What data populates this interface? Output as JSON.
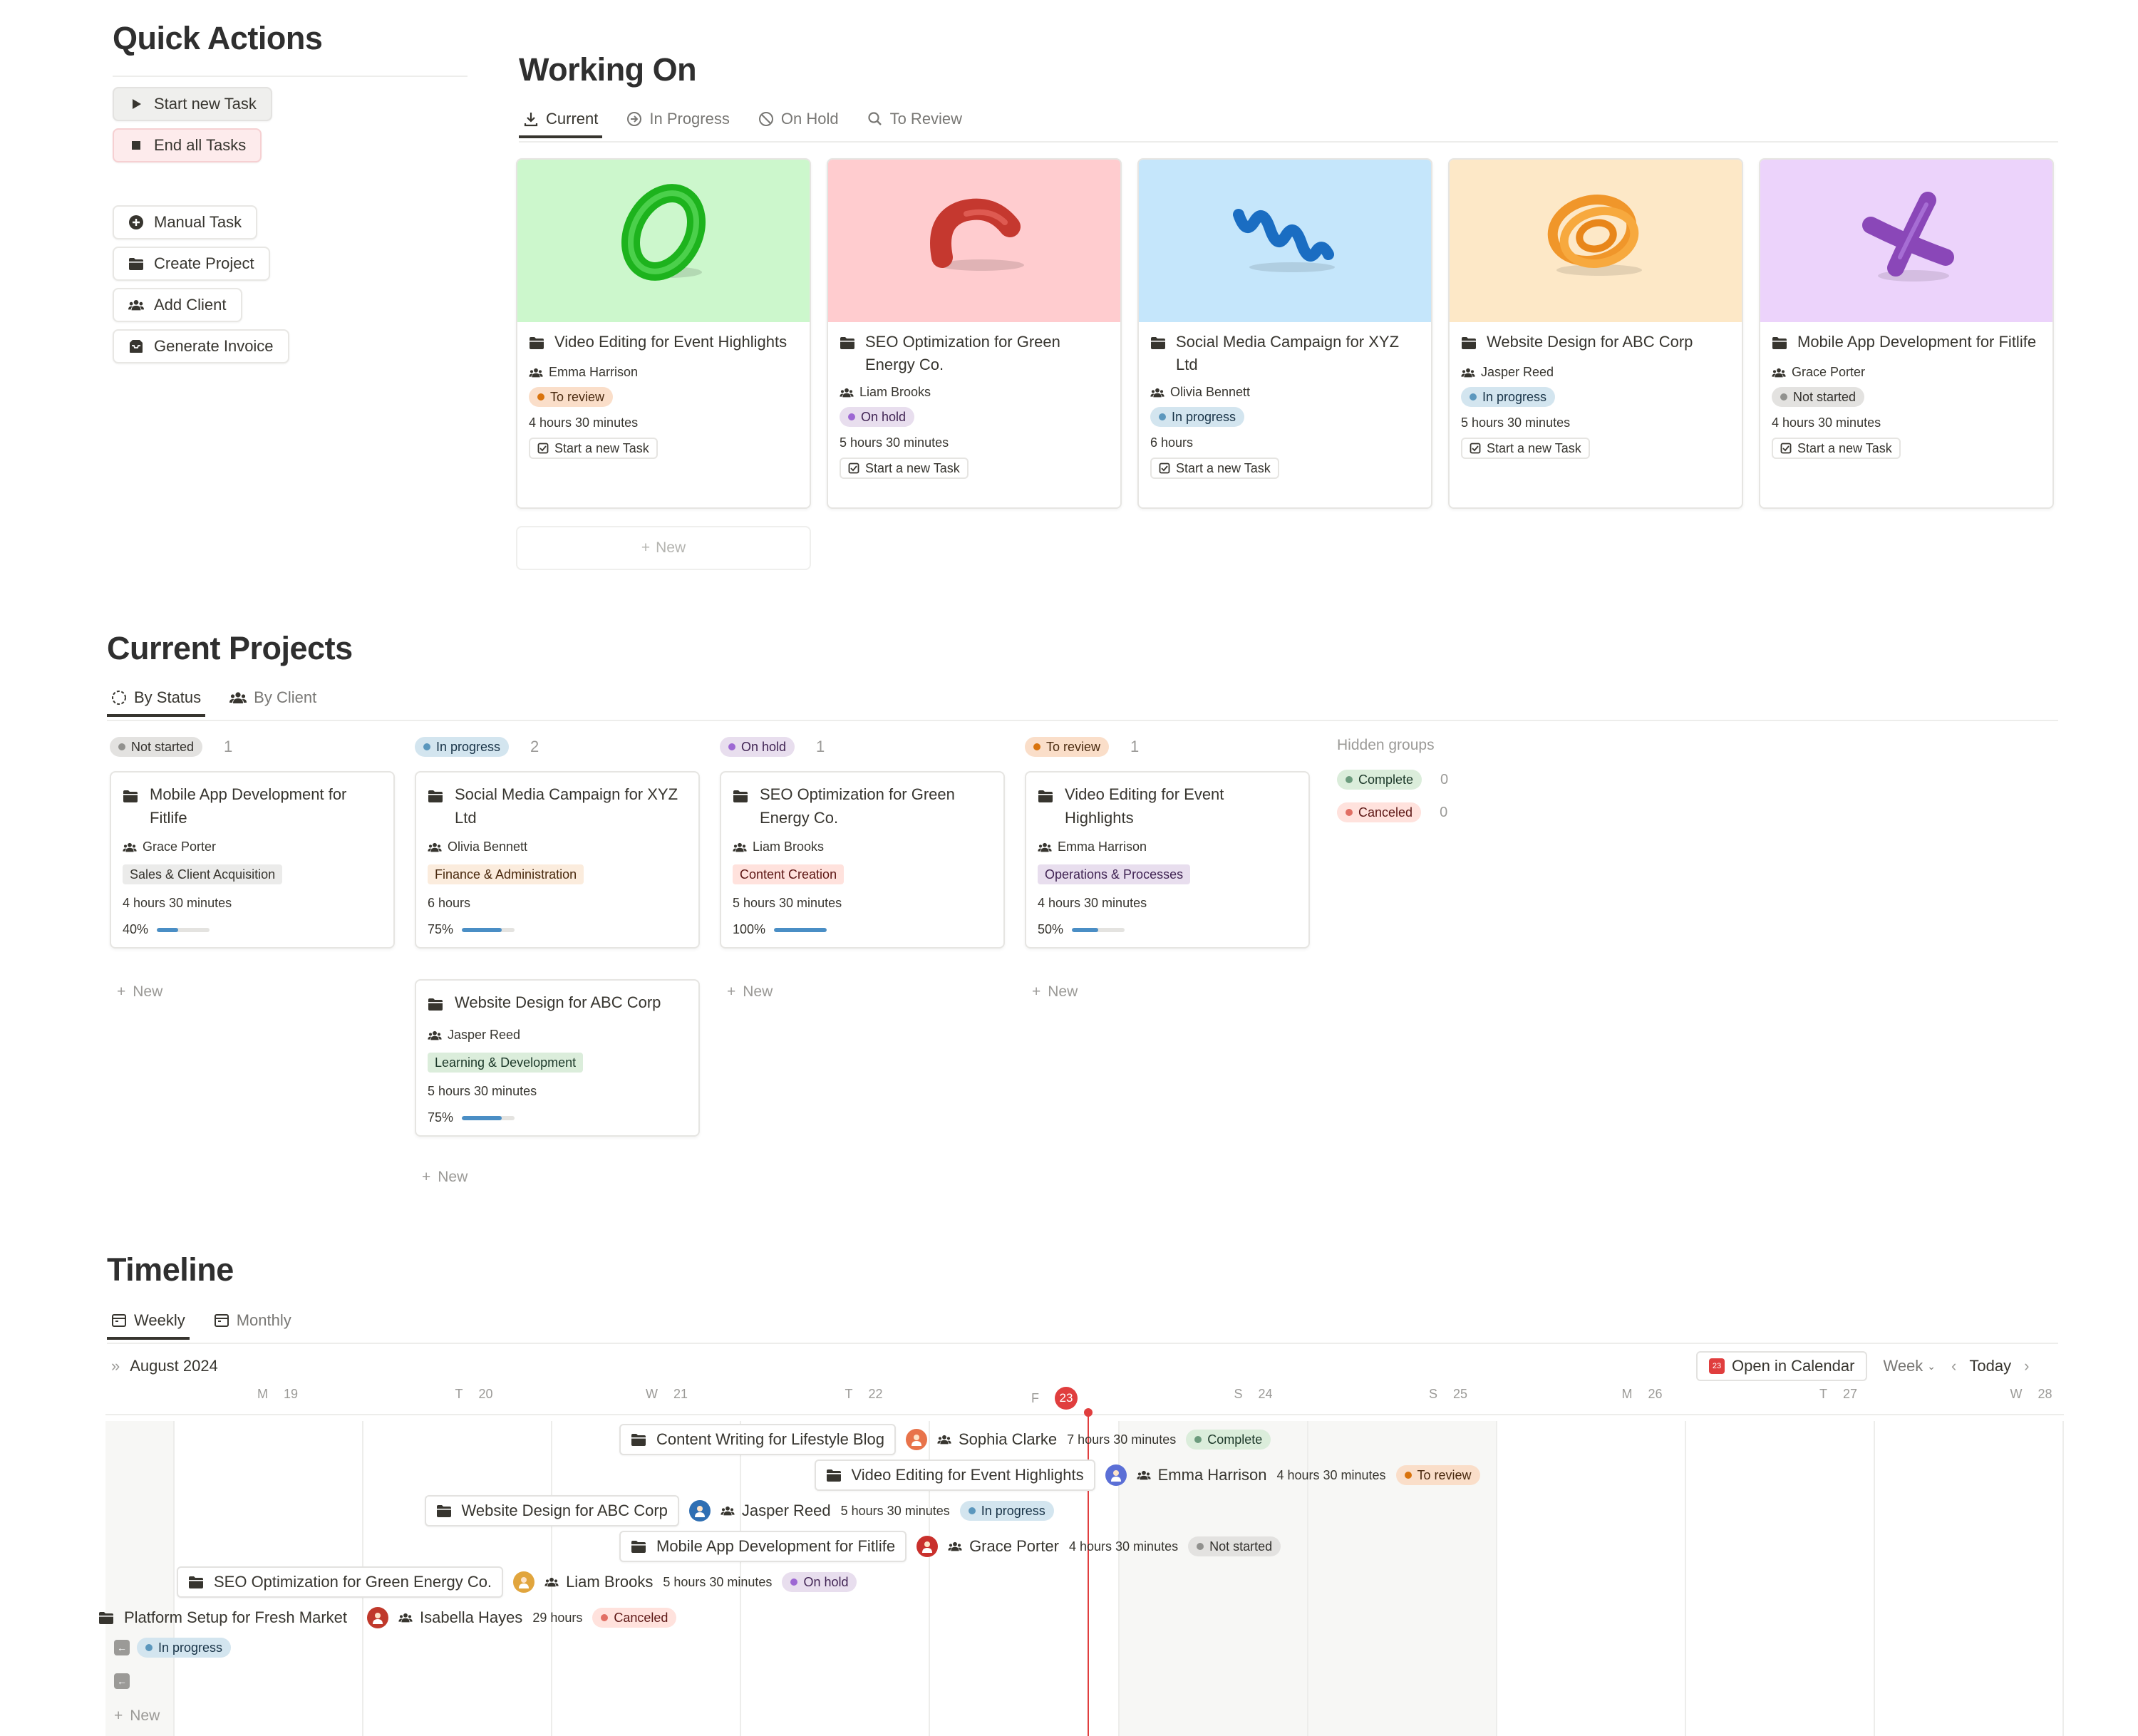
{
  "quick_actions": {
    "title": "Quick Actions",
    "primary": [
      {
        "label": "Start new Task",
        "icon": "play-icon"
      },
      {
        "label": "End all Tasks",
        "icon": "stop-icon"
      }
    ],
    "secondary": [
      {
        "label": "Manual Task",
        "icon": "plus-circle-icon"
      },
      {
        "label": "Create Project",
        "icon": "folder-icon"
      },
      {
        "label": "Add Client",
        "icon": "people-icon"
      },
      {
        "label": "Generate Invoice",
        "icon": "inbox-icon"
      }
    ]
  },
  "working_on": {
    "title": "Working On",
    "tabs": [
      {
        "label": "Current",
        "icon": "download-icon",
        "active": true
      },
      {
        "label": "In Progress",
        "icon": "arrow-circle-icon",
        "active": false
      },
      {
        "label": "On Hold",
        "icon": "block-icon",
        "active": false
      },
      {
        "label": "To Review",
        "icon": "search-icon",
        "active": false
      }
    ],
    "cards": [
      {
        "title": "Video Editing for Event Highlights",
        "client": "Emma Harrison",
        "status": "To review",
        "hours": "4 hours 30 minutes",
        "action": "Start a new Task",
        "cover": "#ccf7cc",
        "shape": "ring"
      },
      {
        "title": "SEO Optimization for Green Energy Co.",
        "client": "Liam Brooks",
        "status": "On hold",
        "hours": "5 hours 30 minutes",
        "action": "Start a new Task",
        "cover": "#ffcccf",
        "shape": "arc"
      },
      {
        "title": "Social Media Campaign for XYZ Ltd",
        "client": "Olivia Bennett",
        "status": "In progress",
        "hours": "6 hours",
        "action": "Start a new Task",
        "cover": "#c5e6fb",
        "shape": "wave"
      },
      {
        "title": "Website Design for ABC Corp",
        "client": "Jasper Reed",
        "status": "In progress",
        "hours": "5 hours 30 minutes",
        "action": "Start a new Task",
        "cover": "#fde8c7",
        "shape": "coil"
      },
      {
        "title": "Mobile App Development for Fitlife",
        "client": "Grace Porter",
        "status": "Not started",
        "hours": "4 hours 30 minutes",
        "action": "Start a new Task",
        "cover": "#ecd3fb",
        "shape": "cross"
      }
    ],
    "new_label": "New"
  },
  "current_projects": {
    "title": "Current Projects",
    "tabs": [
      {
        "label": "By Status",
        "icon": "status-icon",
        "active": true
      },
      {
        "label": "By Client",
        "icon": "people-icon",
        "active": false
      }
    ],
    "columns": [
      {
        "status": "Not started",
        "count": "1",
        "cards": [
          {
            "title": "Mobile App Development for Fitlife",
            "client": "Grace Porter",
            "tag": "Sales & Client Acquisition",
            "tag_bg": "#ebebea",
            "tag_fg": "#37352f",
            "hours": "4 hours 30 minutes",
            "progress_label": "40%",
            "progress": 0.4
          }
        ]
      },
      {
        "status": "In progress",
        "count": "2",
        "cards": [
          {
            "title": "Social Media Campaign for XYZ Ltd",
            "client": "Olivia Bennett",
            "tag": "Finance & Administration",
            "tag_bg": "#fbecdd",
            "tag_fg": "#49290e",
            "hours": "6 hours",
            "progress_label": "75%",
            "progress": 0.75
          },
          {
            "title": "Website Design for ABC Corp",
            "client": "Jasper Reed",
            "tag": "Learning & Development",
            "tag_bg": "#dbeddb",
            "tag_fg": "#1c3829",
            "hours": "5 hours 30 minutes",
            "progress_label": "75%",
            "progress": 0.75
          }
        ]
      },
      {
        "status": "On hold",
        "count": "1",
        "cards": [
          {
            "title": "SEO Optimization for Green Energy Co.",
            "client": "Liam Brooks",
            "tag": "Content Creation",
            "tag_bg": "#ffe2dd",
            "tag_fg": "#5d1715",
            "hours": "5 hours 30 minutes",
            "progress_label": "100%",
            "progress": 1.0
          }
        ]
      },
      {
        "status": "To review",
        "count": "1",
        "cards": [
          {
            "title": "Video Editing for Event Highlights",
            "client": "Emma Harrison",
            "tag": "Operations & Processes",
            "tag_bg": "#e8deee",
            "tag_fg": "#412454",
            "hours": "4 hours 30 minutes",
            "progress_label": "50%",
            "progress": 0.5
          }
        ]
      }
    ],
    "hidden_groups": {
      "label": "Hidden groups",
      "items": [
        {
          "status": "Complete",
          "count": "0"
        },
        {
          "status": "Canceled",
          "count": "0"
        }
      ]
    },
    "new_label": "New"
  },
  "statuses": {
    "Not started": {
      "bg": "#e3e2e0",
      "fg": "#32302c",
      "dot": "#91918e"
    },
    "In progress": {
      "bg": "#d3e5ef",
      "fg": "#183347",
      "dot": "#5b97bd"
    },
    "On hold": {
      "bg": "#e8deee",
      "fg": "#412454",
      "dot": "#9d68d3"
    },
    "To review": {
      "bg": "#fadec9",
      "fg": "#49290e",
      "dot": "#d9730d"
    },
    "Complete": {
      "bg": "#dbeddb",
      "fg": "#1c3829",
      "dot": "#6c9b7d"
    },
    "Canceled": {
      "bg": "#ffe2dd",
      "fg": "#5d1715",
      "dot": "#e16f64"
    }
  },
  "timeline": {
    "title": "Timeline",
    "tabs": [
      {
        "label": "Weekly",
        "icon": "calendar-icon",
        "active": true
      },
      {
        "label": "Monthly",
        "icon": "calendar-icon",
        "active": false
      }
    ],
    "month": "August 2024",
    "open_calendar": "Open in Calendar",
    "calendar_badge": "23",
    "range": "Week",
    "today": "Today",
    "days": [
      {
        "letter": "M",
        "num": "19"
      },
      {
        "letter": "T",
        "num": "20"
      },
      {
        "letter": "W",
        "num": "21"
      },
      {
        "letter": "T",
        "num": "22"
      },
      {
        "letter": "F",
        "num": "23",
        "today": true
      },
      {
        "letter": "S",
        "num": "24"
      },
      {
        "letter": "S",
        "num": "25"
      },
      {
        "letter": "M",
        "num": "26"
      },
      {
        "letter": "T",
        "num": "27"
      },
      {
        "letter": "W",
        "num": "28"
      }
    ],
    "items": [
      {
        "title": "Content Writing for Lifestyle Blog",
        "client": "Sophia Clarke",
        "hours": "7 hours 30 minutes",
        "status": "Complete",
        "avatar_color": "#e8734a"
      },
      {
        "title": "Video Editing for Event Highlights",
        "client": "Emma Harrison",
        "hours": "4 hours 30 minutes",
        "status": "To review",
        "avatar_color": "#5b6fd6"
      },
      {
        "title": "Website Design for ABC Corp",
        "client": "Jasper Reed",
        "hours": "5 hours 30 minutes",
        "status": "In progress",
        "avatar_color": "#2f6fb3"
      },
      {
        "title": "Mobile App Development for Fitlife",
        "client": "Grace Porter",
        "hours": "4 hours 30 minutes",
        "status": "Not started",
        "avatar_color": "#c9302c"
      },
      {
        "title": "SEO Optimization for Green Energy Co.",
        "client": "Liam Brooks",
        "hours": "5 hours 30 minutes",
        "status": "On hold",
        "avatar_color": "#e1a53d"
      },
      {
        "title": "Platform Setup for Fresh Market",
        "client": "Isabella Hayes",
        "hours": "29 hours",
        "status": "Canceled",
        "avatar_color": "#c0392b"
      }
    ],
    "offscreen_status": "In progress",
    "new_label": "New"
  }
}
